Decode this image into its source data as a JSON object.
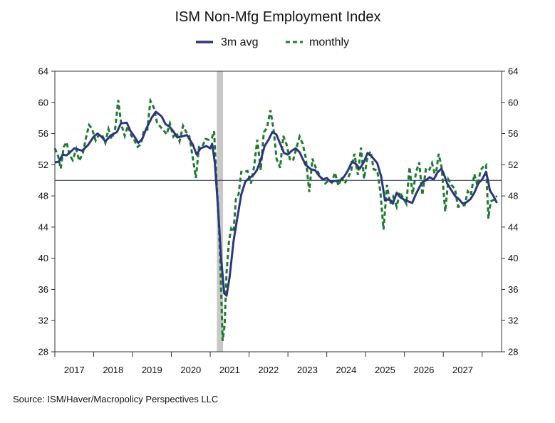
{
  "chart_data": {
    "type": "line",
    "title": "ISM Non-Mfg Employment Index",
    "source": "Source:  ISM/Haver/Macropolicy Perspectives LLC",
    "xlabel": "",
    "ylabel": "",
    "x_domain": [
      2016.0,
      2027.5
    ],
    "ylim": [
      28,
      64
    ],
    "yticks": [
      28,
      32,
      36,
      40,
      44,
      48,
      52,
      56,
      60,
      64
    ],
    "ytick_labels": [
      "28",
      "32",
      "36",
      "40",
      "44",
      "48",
      "52",
      "56",
      "60",
      "64"
    ],
    "x_tick_labels": [
      "2017",
      "2018",
      "2019",
      "2020",
      "2021",
      "2022",
      "2023",
      "2024",
      "2025",
      "2026",
      "2027"
    ],
    "reference_line": 50,
    "shaded_region": [
      2020.17,
      2020.33
    ],
    "legend_position": "top-center",
    "grid": false,
    "colors": {
      "avg3m": "#2e3580",
      "monthly": "#1e7a2c",
      "shade": "#c8c8c8",
      "refline": "#1f2a60"
    },
    "series": [
      {
        "name": "3m avg",
        "style": "solid",
        "points": [
          [
            2016.0,
            52.3
          ],
          [
            2016.1,
            52.4
          ],
          [
            2016.2,
            53.3
          ],
          [
            2016.3,
            53.2
          ],
          [
            2016.5,
            54.1
          ],
          [
            2016.7,
            53.8
          ],
          [
            2016.85,
            54.5
          ],
          [
            2017.0,
            55.6
          ],
          [
            2017.1,
            56.0
          ],
          [
            2017.2,
            55.6
          ],
          [
            2017.3,
            55.0
          ],
          [
            2017.45,
            55.8
          ],
          [
            2017.6,
            56.2
          ],
          [
            2017.7,
            57.3
          ],
          [
            2017.85,
            57.4
          ],
          [
            2017.95,
            56.3
          ],
          [
            2018.05,
            55.6
          ],
          [
            2018.15,
            54.8
          ],
          [
            2018.25,
            55.3
          ],
          [
            2018.35,
            56.6
          ],
          [
            2018.5,
            58.1
          ],
          [
            2018.6,
            58.8
          ],
          [
            2018.75,
            58.2
          ],
          [
            2018.85,
            57.2
          ],
          [
            2018.95,
            56.9
          ],
          [
            2019.05,
            56.3
          ],
          [
            2019.15,
            55.5
          ],
          [
            2019.25,
            55.6
          ],
          [
            2019.4,
            55.8
          ],
          [
            2019.55,
            54.6
          ],
          [
            2019.65,
            53.3
          ],
          [
            2019.75,
            54.1
          ],
          [
            2019.9,
            54.4
          ],
          [
            2020.0,
            54.1
          ],
          [
            2020.05,
            54.7
          ],
          [
            2020.12,
            52.2
          ],
          [
            2020.2,
            46.5
          ],
          [
            2020.28,
            40.0
          ],
          [
            2020.36,
            35.5
          ],
          [
            2020.42,
            35.2
          ],
          [
            2020.5,
            37.6
          ],
          [
            2020.6,
            42.2
          ],
          [
            2020.7,
            45.3
          ],
          [
            2020.8,
            48.2
          ],
          [
            2020.9,
            49.8
          ],
          [
            2021.0,
            50.3
          ],
          [
            2021.1,
            50.6
          ],
          [
            2021.2,
            51.3
          ],
          [
            2021.3,
            52.6
          ],
          [
            2021.4,
            54.4
          ],
          [
            2021.5,
            55.2
          ],
          [
            2021.6,
            56.2
          ],
          [
            2021.7,
            55.9
          ],
          [
            2021.8,
            54.7
          ],
          [
            2021.9,
            53.5
          ],
          [
            2022.0,
            53.3
          ],
          [
            2022.1,
            53.8
          ],
          [
            2022.2,
            54.1
          ],
          [
            2022.3,
            53.6
          ],
          [
            2022.45,
            52.0
          ],
          [
            2022.6,
            51.4
          ],
          [
            2022.7,
            51.3
          ],
          [
            2022.8,
            50.6
          ],
          [
            2022.9,
            50.1
          ],
          [
            2023.0,
            50.3
          ],
          [
            2023.1,
            49.8
          ],
          [
            2023.2,
            49.9
          ],
          [
            2023.35,
            50.0
          ],
          [
            2023.45,
            50.5
          ],
          [
            2023.55,
            51.3
          ],
          [
            2023.65,
            52.4
          ],
          [
            2023.75,
            52.1
          ],
          [
            2023.85,
            51.5
          ],
          [
            2023.95,
            52.3
          ],
          [
            2024.05,
            53.5
          ],
          [
            2024.15,
            53.1
          ],
          [
            2024.3,
            52.2
          ],
          [
            2024.4,
            50.5
          ],
          [
            2024.5,
            47.4
          ],
          [
            2024.6,
            47.6
          ],
          [
            2024.7,
            47.0
          ],
          [
            2024.8,
            48.4
          ],
          [
            2024.9,
            47.8
          ],
          [
            2025.0,
            47.5
          ],
          [
            2025.1,
            47.3
          ],
          [
            2025.2,
            47.1
          ],
          [
            2025.3,
            48.3
          ],
          [
            2025.45,
            49.7
          ],
          [
            2025.55,
            50.0
          ],
          [
            2025.65,
            50.4
          ],
          [
            2025.75,
            50.1
          ],
          [
            2025.85,
            51.0
          ],
          [
            2025.95,
            51.5
          ],
          [
            2026.0,
            51.0
          ],
          [
            2026.1,
            49.6
          ],
          [
            2026.2,
            48.8
          ],
          [
            2026.3,
            48.0
          ],
          [
            2026.4,
            47.6
          ],
          [
            2026.5,
            47.0
          ],
          [
            2026.6,
            47.2
          ],
          [
            2026.7,
            47.6
          ],
          [
            2026.8,
            48.4
          ],
          [
            2026.9,
            49.6
          ],
          [
            2027.0,
            50.1
          ],
          [
            2027.1,
            51.1
          ],
          [
            2027.15,
            50.0
          ],
          [
            2027.2,
            48.7
          ],
          [
            2027.3,
            47.9
          ],
          [
            2027.38,
            47.1
          ]
        ]
      },
      {
        "name": "monthly",
        "style": "dashed",
        "points": [
          [
            2016.0,
            54.1
          ],
          [
            2016.08,
            53.2
          ],
          [
            2016.15,
            51.5
          ],
          [
            2016.23,
            54.3
          ],
          [
            2016.3,
            54.9
          ],
          [
            2016.38,
            53.2
          ],
          [
            2016.46,
            52.6
          ],
          [
            2016.55,
            54.0
          ],
          [
            2016.63,
            52.5
          ],
          [
            2016.72,
            53.5
          ],
          [
            2016.8,
            55.4
          ],
          [
            2016.88,
            57.1
          ],
          [
            2016.96,
            56.6
          ],
          [
            2017.05,
            55.1
          ],
          [
            2017.13,
            55.8
          ],
          [
            2017.21,
            55.9
          ],
          [
            2017.3,
            54.8
          ],
          [
            2017.38,
            56.6
          ],
          [
            2017.46,
            55.3
          ],
          [
            2017.55,
            56.5
          ],
          [
            2017.63,
            60.3
          ],
          [
            2017.71,
            57.2
          ],
          [
            2017.8,
            55.7
          ],
          [
            2017.88,
            57.0
          ],
          [
            2017.96,
            55.8
          ],
          [
            2018.05,
            55.1
          ],
          [
            2018.13,
            54.3
          ],
          [
            2018.21,
            54.6
          ],
          [
            2018.3,
            56.5
          ],
          [
            2018.38,
            56.5
          ],
          [
            2018.46,
            60.2
          ],
          [
            2018.55,
            59.3
          ],
          [
            2018.63,
            57.4
          ],
          [
            2018.71,
            56.9
          ],
          [
            2018.8,
            56.4
          ],
          [
            2018.88,
            55.9
          ],
          [
            2018.96,
            57.3
          ],
          [
            2019.05,
            55.6
          ],
          [
            2019.13,
            56.1
          ],
          [
            2019.21,
            55.0
          ],
          [
            2019.3,
            57.0
          ],
          [
            2019.38,
            56.2
          ],
          [
            2019.46,
            55.7
          ],
          [
            2019.55,
            52.9
          ],
          [
            2019.63,
            50.3
          ],
          [
            2019.71,
            54.3
          ],
          [
            2019.8,
            54.4
          ],
          [
            2019.88,
            55.3
          ],
          [
            2019.96,
            55.2
          ],
          [
            2020.04,
            55.4
          ],
          [
            2020.1,
            56.3
          ],
          [
            2020.16,
            50.1
          ],
          [
            2020.22,
            44.8
          ],
          [
            2020.27,
            37.6
          ],
          [
            2020.32,
            29.4
          ],
          [
            2020.37,
            31.4
          ],
          [
            2020.42,
            38.2
          ],
          [
            2020.48,
            42.1
          ],
          [
            2020.54,
            43.8
          ],
          [
            2020.6,
            43.4
          ],
          [
            2020.66,
            47.6
          ],
          [
            2020.73,
            48.2
          ],
          [
            2020.8,
            51.1
          ],
          [
            2020.88,
            51.1
          ],
          [
            2020.96,
            51.2
          ],
          [
            2021.05,
            49.6
          ],
          [
            2021.13,
            51.8
          ],
          [
            2021.21,
            55.2
          ],
          [
            2021.3,
            51.3
          ],
          [
            2021.38,
            56.2
          ],
          [
            2021.46,
            56.7
          ],
          [
            2021.55,
            59.0
          ],
          [
            2021.63,
            56.5
          ],
          [
            2021.71,
            52.7
          ],
          [
            2021.8,
            51.6
          ],
          [
            2021.88,
            55.7
          ],
          [
            2021.96,
            54.7
          ],
          [
            2022.05,
            52.7
          ],
          [
            2022.13,
            52.5
          ],
          [
            2022.21,
            54.0
          ],
          [
            2022.3,
            55.6
          ],
          [
            2022.38,
            54.7
          ],
          [
            2022.46,
            52.9
          ],
          [
            2022.55,
            48.5
          ],
          [
            2022.63,
            52.8
          ],
          [
            2022.71,
            51.7
          ],
          [
            2022.8,
            50.8
          ],
          [
            2022.88,
            50.2
          ],
          [
            2022.96,
            49.6
          ],
          [
            2023.05,
            50.0
          ],
          [
            2023.13,
            49.7
          ],
          [
            2023.21,
            51.0
          ],
          [
            2023.3,
            49.3
          ],
          [
            2023.38,
            50.4
          ],
          [
            2023.46,
            49.6
          ],
          [
            2023.55,
            50.3
          ],
          [
            2023.63,
            51.3
          ],
          [
            2023.71,
            53.4
          ],
          [
            2023.8,
            50.7
          ],
          [
            2023.88,
            54.2
          ],
          [
            2023.96,
            50.2
          ],
          [
            2024.05,
            53.1
          ],
          [
            2024.13,
            53.7
          ],
          [
            2024.21,
            51.4
          ],
          [
            2024.3,
            51.3
          ],
          [
            2024.38,
            48.5
          ],
          [
            2024.46,
            43.7
          ],
          [
            2024.55,
            49.4
          ],
          [
            2024.63,
            47.0
          ],
          [
            2024.71,
            47.9
          ],
          [
            2024.8,
            46.6
          ],
          [
            2024.88,
            48.5
          ],
          [
            2024.96,
            47.8
          ],
          [
            2025.05,
            47.0
          ],
          [
            2025.13,
            51.7
          ],
          [
            2025.21,
            48.2
          ],
          [
            2025.3,
            51.1
          ],
          [
            2025.38,
            52.3
          ],
          [
            2025.46,
            48.1
          ],
          [
            2025.55,
            51.4
          ],
          [
            2025.63,
            51.2
          ],
          [
            2025.71,
            52.2
          ],
          [
            2025.8,
            50.4
          ],
          [
            2025.88,
            53.4
          ],
          [
            2025.96,
            51.6
          ],
          [
            2026.05,
            46.0
          ],
          [
            2026.13,
            50.1
          ],
          [
            2026.21,
            49.4
          ],
          [
            2026.3,
            48.9
          ],
          [
            2026.38,
            46.6
          ],
          [
            2026.46,
            46.7
          ],
          [
            2026.55,
            46.8
          ],
          [
            2026.63,
            48.6
          ],
          [
            2026.71,
            48.1
          ],
          [
            2026.8,
            50.8
          ],
          [
            2026.88,
            49.3
          ],
          [
            2026.96,
            51.3
          ],
          [
            2027.04,
            51.8
          ],
          [
            2027.1,
            52.0
          ],
          [
            2027.16,
            45.1
          ],
          [
            2027.22,
            47.3
          ],
          [
            2027.3,
            47.5
          ],
          [
            2027.38,
            48.0
          ]
        ]
      }
    ]
  }
}
